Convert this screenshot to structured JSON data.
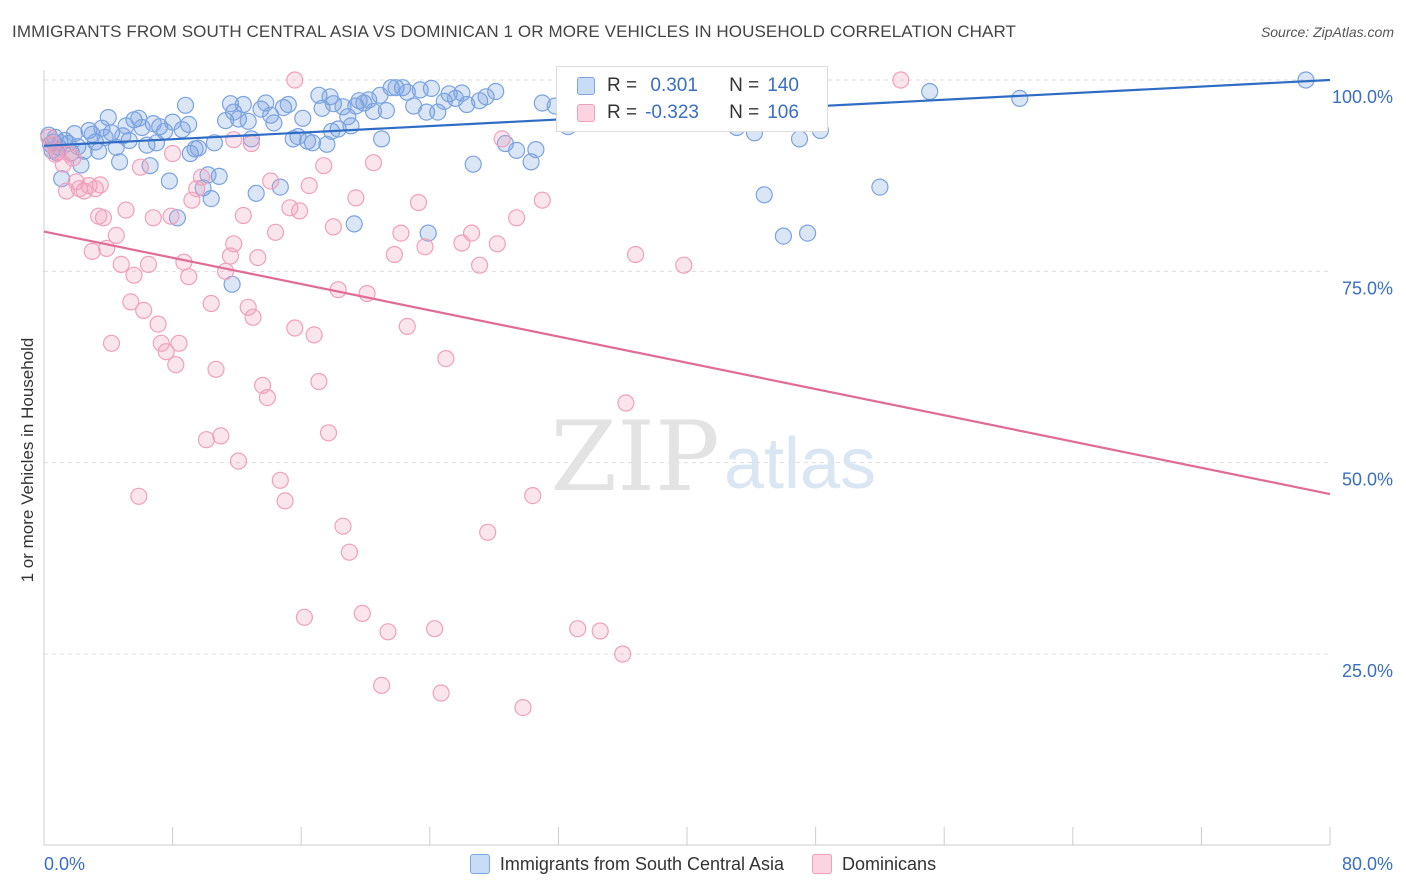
{
  "header": {
    "title": "IMMIGRANTS FROM SOUTH CENTRAL ASIA VS DOMINICAN 1 OR MORE VEHICLES IN HOUSEHOLD CORRELATION CHART",
    "source": "Source: ZipAtlas.com"
  },
  "watermark": {
    "zip": "ZIP",
    "atlas": "atlas"
  },
  "legend": {
    "rows": [
      {
        "r_label": "R =",
        "r_value": " 0.301",
        "n_label": "N =",
        "n_value": "140"
      },
      {
        "r_label": "R =",
        "r_value": "-0.323",
        "n_label": "N =",
        "n_value": "106"
      }
    ]
  },
  "chart_data": {
    "type": "scatter",
    "title": "IMMIGRANTS FROM SOUTH CENTRAL ASIA VS DOMINICAN 1 OR MORE VEHICLES IN HOUSEHOLD CORRELATION CHART",
    "xlabel": "",
    "ylabel": "1 or more Vehicles in Household",
    "xlim": [
      0,
      80
    ],
    "ylim": [
      0,
      105
    ],
    "x_tick_labels": [
      "0.0%",
      "80.0%"
    ],
    "y_ticks": [
      25,
      50,
      75,
      100
    ],
    "y_tick_labels": [
      "25.0%",
      "50.0%",
      "75.0%",
      "100.0%"
    ],
    "grid": true,
    "legend_position": "top-center",
    "series": [
      {
        "name": "Immigrants from South Central Asia",
        "color": "#7ba3e0",
        "line_color": "#2f6cc4",
        "r": 0.301,
        "n": 140,
        "trend": {
          "x": [
            0,
            80
          ],
          "y": [
            91.4,
            100
          ]
        },
        "points": [
          [
            0.3,
            92.8
          ],
          [
            0.4,
            91.6
          ],
          [
            0.5,
            90.8
          ],
          [
            0.6,
            91.9
          ],
          [
            0.7,
            92.5
          ],
          [
            0.8,
            90.5
          ],
          [
            0.9,
            91.2
          ],
          [
            1.0,
            91.8
          ],
          [
            1.1,
            87.1
          ],
          [
            1.3,
            92.1
          ],
          [
            1.5,
            91.7
          ],
          [
            1.7,
            90.5
          ],
          [
            1.9,
            93.0
          ],
          [
            2.1,
            91.3
          ],
          [
            2.3,
            88.9
          ],
          [
            2.5,
            90.7
          ],
          [
            2.8,
            93.4
          ],
          [
            3.0,
            92.9
          ],
          [
            3.2,
            91.9
          ],
          [
            3.4,
            90.7
          ],
          [
            3.6,
            93.7
          ],
          [
            3.8,
            92.5
          ],
          [
            4.0,
            95.1
          ],
          [
            4.2,
            93.1
          ],
          [
            4.5,
            91.2
          ],
          [
            4.7,
            89.3
          ],
          [
            4.9,
            92.7
          ],
          [
            5.1,
            94.0
          ],
          [
            5.3,
            92.1
          ],
          [
            5.6,
            94.8
          ],
          [
            5.9,
            95.0
          ],
          [
            6.1,
            93.8
          ],
          [
            6.4,
            91.5
          ],
          [
            6.6,
            88.8
          ],
          [
            6.8,
            94.3
          ],
          [
            7.0,
            91.8
          ],
          [
            7.2,
            93.9
          ],
          [
            7.5,
            93.3
          ],
          [
            7.8,
            86.8
          ],
          [
            8.0,
            94.5
          ],
          [
            8.3,
            82.0
          ],
          [
            8.6,
            93.5
          ],
          [
            8.8,
            96.7
          ],
          [
            9.1,
            90.4
          ],
          [
            9.4,
            91.0
          ],
          [
            9.6,
            91.1
          ],
          [
            9.9,
            85.9
          ],
          [
            10.2,
            87.6
          ],
          [
            10.4,
            84.5
          ],
          [
            10.6,
            91.8
          ],
          [
            10.9,
            87.4
          ],
          [
            11.3,
            94.7
          ],
          [
            11.6,
            96.9
          ],
          [
            11.8,
            95.8
          ],
          [
            12.1,
            94.9
          ],
          [
            12.4,
            96.8
          ],
          [
            12.7,
            94.6
          ],
          [
            12.9,
            92.3
          ],
          [
            13.2,
            85.2
          ],
          [
            13.5,
            96.2
          ],
          [
            13.8,
            97.0
          ],
          [
            14.1,
            95.4
          ],
          [
            14.3,
            94.4
          ],
          [
            14.7,
            86.0
          ],
          [
            14.9,
            96.4
          ],
          [
            15.2,
            96.8
          ],
          [
            15.5,
            92.3
          ],
          [
            15.8,
            92.6
          ],
          [
            16.1,
            95.0
          ],
          [
            16.4,
            92.0
          ],
          [
            16.7,
            91.8
          ],
          [
            17.1,
            98.0
          ],
          [
            17.3,
            96.3
          ],
          [
            17.6,
            91.6
          ],
          [
            17.8,
            97.8
          ],
          [
            18.0,
            96.9
          ],
          [
            18.3,
            93.6
          ],
          [
            18.6,
            96.5
          ],
          [
            18.9,
            95.2
          ],
          [
            19.1,
            94.0
          ],
          [
            19.4,
            96.6
          ],
          [
            19.6,
            97.3
          ],
          [
            19.9,
            97.0
          ],
          [
            20.2,
            97.4
          ],
          [
            20.5,
            95.9
          ],
          [
            20.9,
            98.0
          ],
          [
            21.3,
            96.0
          ],
          [
            21.6,
            99.0
          ],
          [
            21.9,
            99.0
          ],
          [
            22.3,
            99.0
          ],
          [
            22.6,
            98.4
          ],
          [
            23.0,
            96.6
          ],
          [
            23.4,
            98.7
          ],
          [
            23.8,
            95.8
          ],
          [
            24.1,
            98.9
          ],
          [
            24.5,
            95.8
          ],
          [
            24.9,
            97.2
          ],
          [
            25.2,
            98.2
          ],
          [
            25.6,
            97.6
          ],
          [
            26.0,
            98.3
          ],
          [
            26.3,
            96.8
          ],
          [
            26.7,
            89.0
          ],
          [
            27.1,
            97.3
          ],
          [
            27.5,
            97.8
          ],
          [
            28.1,
            98.5
          ],
          [
            28.7,
            91.7
          ],
          [
            29.4,
            90.8
          ],
          [
            30.3,
            89.3
          ],
          [
            31.0,
            97.0
          ],
          [
            31.8,
            96.6
          ],
          [
            32.6,
            93.9
          ],
          [
            33.4,
            100
          ],
          [
            34.3,
            100
          ],
          [
            35.1,
            98.0
          ],
          [
            36.1,
            100
          ],
          [
            37.3,
            100
          ],
          [
            38.6,
            97.6
          ],
          [
            39.5,
            95.0
          ],
          [
            40.6,
            100
          ],
          [
            41.8,
            100
          ],
          [
            43.1,
            93.8
          ],
          [
            44.2,
            93.1
          ],
          [
            46.1,
            99.2
          ],
          [
            47.0,
            92.3
          ],
          [
            48.3,
            93.4
          ],
          [
            44.8,
            85.0
          ],
          [
            46.0,
            79.6
          ],
          [
            47.5,
            80.0
          ],
          [
            52.0,
            86.0
          ],
          [
            55.1,
            98.5
          ],
          [
            60.7,
            97.6
          ],
          [
            11.7,
            73.3
          ],
          [
            19.3,
            81.2
          ],
          [
            23.9,
            80.0
          ],
          [
            78.5,
            100
          ],
          [
            17.9,
            93.3
          ],
          [
            21.0,
            92.3
          ],
          [
            30.6,
            90.9
          ],
          [
            9.0,
            94.2
          ]
        ]
      },
      {
        "name": "Dominicans",
        "color": "#f0a0bc",
        "line_color": "#e06b97",
        "r": -0.323,
        "n": 106,
        "trend": {
          "x": [
            0,
            80
          ],
          "y": [
            80.2,
            45.9
          ]
        },
        "points": [
          [
            0.3,
            92.5
          ],
          [
            0.5,
            91.6
          ],
          [
            0.7,
            90.3
          ],
          [
            0.9,
            90.6
          ],
          [
            1.2,
            89.0
          ],
          [
            1.4,
            85.5
          ],
          [
            1.6,
            90.3
          ],
          [
            1.8,
            89.8
          ],
          [
            2.0,
            86.7
          ],
          [
            2.2,
            85.8
          ],
          [
            2.5,
            85.5
          ],
          [
            2.8,
            86.2
          ],
          [
            3.0,
            77.6
          ],
          [
            3.2,
            85.8
          ],
          [
            3.4,
            82.2
          ],
          [
            3.5,
            86.3
          ],
          [
            3.7,
            82.0
          ],
          [
            3.9,
            78.0
          ],
          [
            4.2,
            65.6
          ],
          [
            4.5,
            79.7
          ],
          [
            4.8,
            75.9
          ],
          [
            5.1,
            83.0
          ],
          [
            5.4,
            71.0
          ],
          [
            5.6,
            74.5
          ],
          [
            5.9,
            45.6
          ],
          [
            6.2,
            69.9
          ],
          [
            6.5,
            75.9
          ],
          [
            6.8,
            82.0
          ],
          [
            7.1,
            68.1
          ],
          [
            7.3,
            65.6
          ],
          [
            7.6,
            64.5
          ],
          [
            7.9,
            82.2
          ],
          [
            8.2,
            62.8
          ],
          [
            8.4,
            65.6
          ],
          [
            8.7,
            76.2
          ],
          [
            9.0,
            74.3
          ],
          [
            9.2,
            84.3
          ],
          [
            9.5,
            85.8
          ],
          [
            9.8,
            87.3
          ],
          [
            10.1,
            53.0
          ],
          [
            10.4,
            70.8
          ],
          [
            10.7,
            62.2
          ],
          [
            11.0,
            53.5
          ],
          [
            11.3,
            75.0
          ],
          [
            11.6,
            77.0
          ],
          [
            11.8,
            78.6
          ],
          [
            12.1,
            50.2
          ],
          [
            12.4,
            82.3
          ],
          [
            12.7,
            70.3
          ],
          [
            13.0,
            69.0
          ],
          [
            13.3,
            76.8
          ],
          [
            13.6,
            60.1
          ],
          [
            13.9,
            58.5
          ],
          [
            14.1,
            86.8
          ],
          [
            14.4,
            80.1
          ],
          [
            14.7,
            47.7
          ],
          [
            15.0,
            45.0
          ],
          [
            15.3,
            83.3
          ],
          [
            15.6,
            67.6
          ],
          [
            15.9,
            82.9
          ],
          [
            16.2,
            29.8
          ],
          [
            16.5,
            86.2
          ],
          [
            16.8,
            66.7
          ],
          [
            17.1,
            60.6
          ],
          [
            17.4,
            88.8
          ],
          [
            17.7,
            53.9
          ],
          [
            18.0,
            80.8
          ],
          [
            18.3,
            72.6
          ],
          [
            18.6,
            41.7
          ],
          [
            19.0,
            38.3
          ],
          [
            19.4,
            84.6
          ],
          [
            19.8,
            30.3
          ],
          [
            20.1,
            72.1
          ],
          [
            20.5,
            89.2
          ],
          [
            21.0,
            20.9
          ],
          [
            21.4,
            27.9
          ],
          [
            21.8,
            77.2
          ],
          [
            22.2,
            80.0
          ],
          [
            22.6,
            67.8
          ],
          [
            23.3,
            84.0
          ],
          [
            23.7,
            78.2
          ],
          [
            24.3,
            28.3
          ],
          [
            24.7,
            19.9
          ],
          [
            25.0,
            63.6
          ],
          [
            26.0,
            78.7
          ],
          [
            26.6,
            80.0
          ],
          [
            27.1,
            75.8
          ],
          [
            27.6,
            40.9
          ],
          [
            28.2,
            78.6
          ],
          [
            29.4,
            82.0
          ],
          [
            29.8,
            18.0
          ],
          [
            30.4,
            45.7
          ],
          [
            31.0,
            84.3
          ],
          [
            33.2,
            28.3
          ],
          [
            34.6,
            28.0
          ],
          [
            36.0,
            25.0
          ],
          [
            36.2,
            57.8
          ],
          [
            36.8,
            77.2
          ],
          [
            39.8,
            75.8
          ],
          [
            53.3,
            100
          ],
          [
            28.5,
            92.3
          ],
          [
            15.6,
            100
          ],
          [
            8.0,
            90.4
          ],
          [
            6.0,
            88.6
          ],
          [
            11.8,
            92.2
          ],
          [
            12.9,
            91.7
          ]
        ]
      }
    ]
  },
  "bottom_legend": {
    "items": [
      {
        "label": "Immigrants from South Central Asia",
        "fill": "#c9dcf5",
        "border": "#7ba3e0"
      },
      {
        "label": "Dominicans",
        "fill": "#fbd3e1",
        "border": "#f0a0bc"
      }
    ]
  }
}
